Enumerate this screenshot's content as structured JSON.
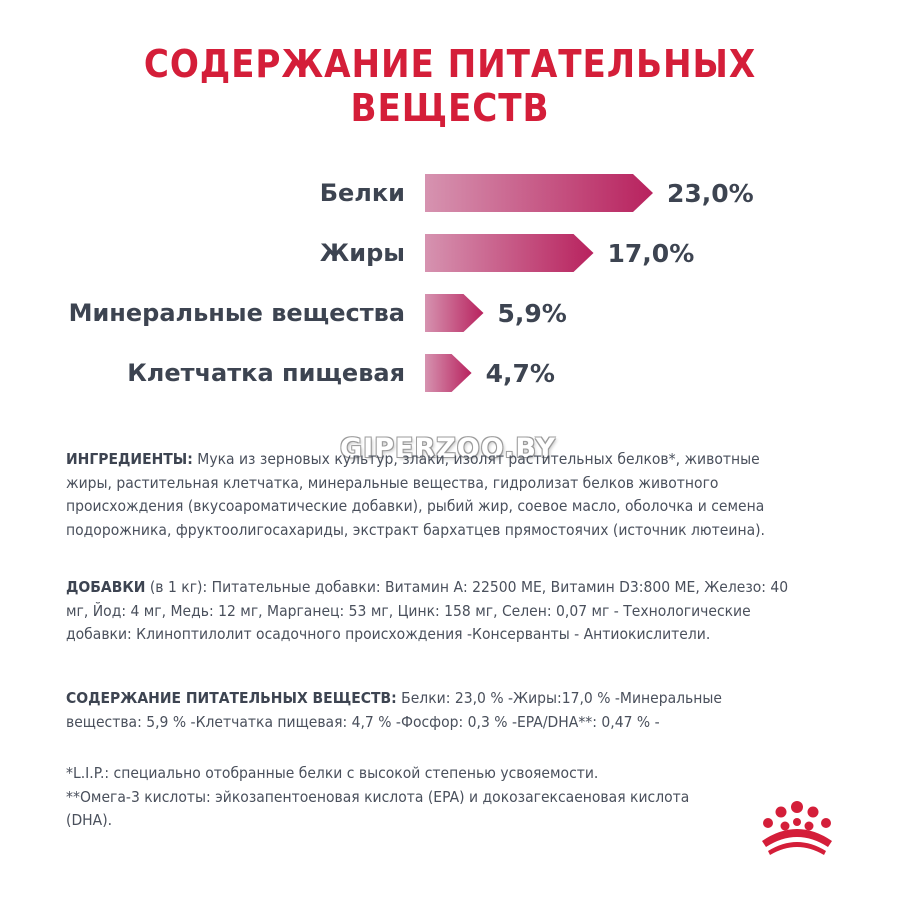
{
  "title": "СОДЕРЖАНИЕ ПИТАТЕЛЬНЫХ ВЕЩЕСТВ",
  "chart_data": {
    "type": "bar",
    "orientation": "horizontal",
    "categories": [
      "Белки",
      "Жиры",
      "Минеральные вещества",
      "Клетчатка пищевая"
    ],
    "values": [
      23.0,
      17.0,
      5.9,
      4.7
    ],
    "value_labels": [
      "23,0%",
      "17,0%",
      "5,9%",
      "4,7%"
    ],
    "title": "",
    "xlabel": "",
    "ylabel": "",
    "colors": {
      "start": "#d693b0",
      "end": "#b8225e"
    }
  },
  "watermark": "GIPERZOO.BY",
  "ingredients": {
    "heading": "ИНГРЕДИЕНТЫ:",
    "text": " Мука из зерновых культур, злаки, изолят растительных белков*, животные жиры, растительная клетчатка, минеральные вещества, гидролизат белков животного происхождения (вкусоароматические добавки), рыбий жир, соевое масло, оболочка и семена подорожника, фруктоолигосахариды, экстракт бархатцев прямостоячих (источник лютеина)."
  },
  "additives": {
    "heading": "ДОБАВКИ",
    "sub": " (в 1 кг):",
    "text": " Питательные добавки: Витамин А: 22500 МЕ, Витамин D3:800 МЕ, Железо: 40 мг, Йод: 4 мг, Медь: 12 мг, Марганец: 53 мг, Цинк: 158 мг, Селен: 0,07 мг - Технологические добавки: Клиноптилолит осадочного происхождения -Консерванты - Антиокислители."
  },
  "nutrients": {
    "heading": "СОДЕРЖАНИЕ ПИТАТЕЛЬНЫХ ВЕЩЕСТВ:",
    "text": " Белки: 23,0 % -Жиры:17,0 % -Минеральные вещества: 5,9 % -Клетчатка пищевая: 4,7 % -Фосфор: 0,3 % -EPA/DHA**: 0,47 % -"
  },
  "footnotes": {
    "line1": "*L.I.P.: специально отобранные белки с высокой степенью усвояемости.",
    "line2": "**Омега-3 кислоты: эйкозапентоеновая кислота (EPA) и докозагексаеновая кислота (DHA)."
  },
  "logo": {
    "icon": "royal-crown-icon",
    "color": "#d41e39"
  }
}
